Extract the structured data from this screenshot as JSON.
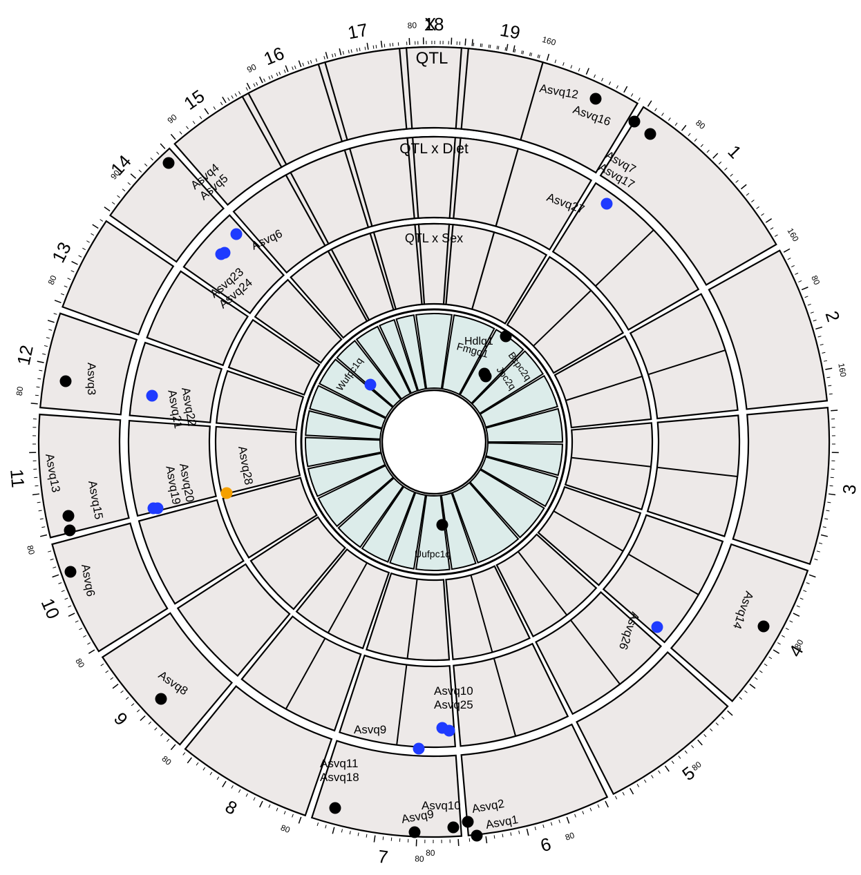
{
  "colors": {
    "sector_fill": "#ede9e8",
    "inner_fill": "#dcecea",
    "stroke": "#000000",
    "main_effect": "#000000",
    "diet_effect": "#1f3bff",
    "sex_effect": "#f5a000"
  },
  "rings": {
    "qtl": "QTL",
    "qtl_x_diet": "QTL x Diet",
    "qtl_x_sex": "QTL x Sex"
  },
  "chromosomes": [
    "X",
    "1",
    "2",
    "3",
    "4",
    "5",
    "6",
    "7",
    "8",
    "9",
    "10",
    "11",
    "12",
    "13",
    "14",
    "15",
    "16",
    "17",
    "18",
    "19"
  ],
  "ticks": [
    {
      "chr": "X",
      "labels": [
        "80",
        "160"
      ]
    },
    {
      "chr": "1",
      "labels": [
        "80",
        "160"
      ]
    },
    {
      "chr": "2",
      "labels": [
        "80",
        "160"
      ]
    },
    {
      "chr": "4",
      "labels": [
        "80"
      ]
    },
    {
      "chr": "5",
      "labels": [
        "80"
      ]
    },
    {
      "chr": "6",
      "labels": [
        "80"
      ]
    },
    {
      "chr": "7",
      "labels": [
        "80"
      ]
    },
    {
      "chr": "8",
      "labels": [
        "80"
      ]
    },
    {
      "chr": "9",
      "labels": [
        "80"
      ]
    },
    {
      "chr": "10",
      "labels": [
        "80"
      ]
    },
    {
      "chr": "11",
      "labels": [
        "80"
      ]
    },
    {
      "chr": "12",
      "labels": [
        "80"
      ]
    },
    {
      "chr": "13",
      "labels": [
        "80"
      ]
    },
    {
      "chr": "14",
      "labels": [
        "80"
      ]
    },
    {
      "chr": "15",
      "labels": [
        "90"
      ]
    },
    {
      "chr": "16",
      "labels": [
        "90"
      ]
    },
    {
      "chr": "17",
      "labels": [
        "90"
      ]
    }
  ],
  "qtl_main": [
    {
      "chr": "1",
      "labels": [
        "Asvq12"
      ]
    },
    {
      "chr": "1",
      "labels": [
        "Asvq16"
      ]
    },
    {
      "chr": "1",
      "labels": [
        "Asvq7",
        "Asvq17"
      ]
    },
    {
      "chr": "5",
      "labels": [
        "Asvq14"
      ]
    },
    {
      "chr": "8",
      "labels": [
        "Asvq9"
      ]
    },
    {
      "chr": "8",
      "labels": [
        "Asvq10"
      ]
    },
    {
      "chr": "8",
      "labels": [
        "Asvq2"
      ]
    },
    {
      "chr": "8",
      "labels": [
        "Asvq1"
      ]
    },
    {
      "chr": "9",
      "labels": [
        "Asvq11",
        "Asvq18"
      ]
    },
    {
      "chr": "11",
      "labels": [
        "Asvq8"
      ]
    },
    {
      "chr": "12",
      "labels": [
        "Asvq6"
      ]
    },
    {
      "chr": "13",
      "labels": [
        "Asvq13"
      ]
    },
    {
      "chr": "13",
      "labels": [
        "Asvq15"
      ]
    },
    {
      "chr": "14",
      "labels": [
        "Asvq3"
      ]
    },
    {
      "chr": "17",
      "labels": [
        "Asvq4",
        "Asvq5"
      ]
    }
  ],
  "qtl_diet": [
    {
      "chr": "1",
      "labels": [
        "Asvq27"
      ]
    },
    {
      "chr": "5",
      "labels": [
        "Asvq26"
      ]
    },
    {
      "chr": "8",
      "labels": [
        "Asvq10",
        "Asvq25"
      ]
    },
    {
      "chr": "8",
      "labels": [
        "Asvq9"
      ]
    },
    {
      "chr": "13",
      "labels": [
        "Asvq20",
        "Asvq19"
      ]
    },
    {
      "chr": "14",
      "labels": [
        "Asvq22",
        "Asvq21"
      ]
    },
    {
      "chr": "16",
      "labels": [
        "Asvq23",
        "Asvq24"
      ]
    },
    {
      "chr": "17",
      "labels": [
        "Asvq6"
      ]
    }
  ],
  "qtl_sex": [
    {
      "chr": "13",
      "labels": [
        "Asvq28"
      ]
    }
  ],
  "inner_qtl": [
    {
      "labels": [
        "Hdlq1"
      ]
    },
    {
      "labels": [
        "Fmgq1"
      ]
    },
    {
      "labels": [
        "Bcpc2q"
      ]
    },
    {
      "labels": [
        "Jpc2q"
      ]
    },
    {
      "labels": [
        "Wufpc1q"
      ]
    },
    {
      "labels": [
        "Uufpc1q"
      ]
    }
  ]
}
